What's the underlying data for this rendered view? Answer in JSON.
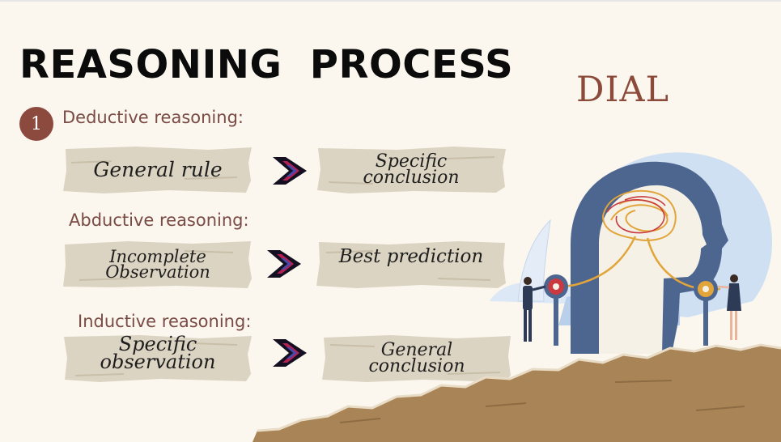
{
  "slide": {
    "title": "REASONING  PROCESS",
    "brand": "DIAL",
    "step_number": "1"
  },
  "sections": [
    {
      "heading": "Deductive reasoning:",
      "from": [
        "General rule"
      ],
      "to": [
        "Specific",
        "conclusion"
      ]
    },
    {
      "heading": "Abductive reasoning:",
      "from": [
        "Incomplete",
        "Observation"
      ],
      "to": [
        "Best prediction"
      ]
    },
    {
      "heading": "Inductive reasoning:",
      "from": [
        "Specific",
        "observation"
      ],
      "to": [
        "General",
        "conclusion"
      ]
    }
  ],
  "icons": {
    "flow_arrow": "chevron-right-icon",
    "illustration": "brain-head-illustration"
  },
  "colors": {
    "background": "#fbf7ee",
    "title": "#0b0b0b",
    "brand": "#8c4a3a",
    "badge": "#8c4a3f",
    "heading": "#7a4a44",
    "paper_note": "#dcd4c2",
    "torn_paper": "#a98456"
  }
}
